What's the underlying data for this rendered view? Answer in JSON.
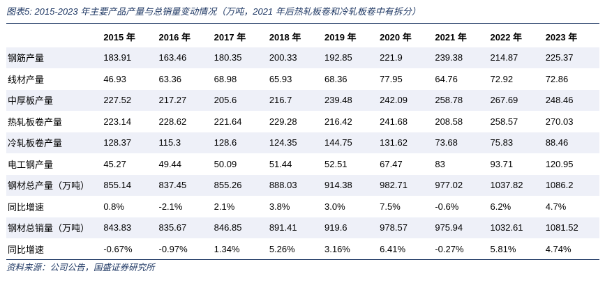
{
  "title": "图表5: 2015-2023 年主要产品产量与总销量变动情况（万吨，2021 年后热轧板卷和冷轧板卷中有拆分）",
  "source": "资料来源：公司公告，国盛证券研究所",
  "table": {
    "header": [
      "",
      "2015 年",
      "2016 年",
      "2017 年",
      "2018 年",
      "2019 年",
      "2020 年",
      "2021 年",
      "2022 年",
      "2023 年"
    ],
    "rows": [
      {
        "label": "钢筋产量",
        "values": [
          "183.91",
          "163.46",
          "180.35",
          "200.33",
          "192.85",
          "221.9",
          "239.38",
          "214.87",
          "225.37"
        ]
      },
      {
        "label": "线材产量",
        "values": [
          "46.93",
          "63.36",
          "68.98",
          "65.93",
          "68.36",
          "77.95",
          "64.76",
          "72.92",
          "72.86"
        ]
      },
      {
        "label": "中厚板产量",
        "values": [
          "227.52",
          "217.27",
          "205.6",
          "216.7",
          "239.48",
          "242.09",
          "258.78",
          "267.69",
          "248.46"
        ]
      },
      {
        "label": "热轧板卷产量",
        "values": [
          "223.14",
          "228.62",
          "221.64",
          "229.28",
          "216.42",
          "241.68",
          "208.58",
          "258.57",
          "270.03"
        ]
      },
      {
        "label": "冷轧板卷产量",
        "values": [
          "128.37",
          "115.3",
          "128.6",
          "124.35",
          "144.75",
          "131.62",
          "73.68",
          "75.83",
          "88.46"
        ]
      },
      {
        "label": "电工钢产量",
        "values": [
          "45.27",
          "49.44",
          "50.09",
          "51.44",
          "52.51",
          "67.47",
          "83",
          "93.71",
          "120.95"
        ]
      },
      {
        "label": "钢材总产量（万吨）",
        "values": [
          "855.14",
          "837.45",
          "855.26",
          "888.03",
          "914.38",
          "982.71",
          "977.02",
          "1037.82",
          "1086.2"
        ]
      },
      {
        "label": "同比增速",
        "values": [
          "0.8%",
          "-2.1%",
          "2.1%",
          "3.8%",
          "3.0%",
          "7.5%",
          "-0.6%",
          "6.2%",
          "4.7%"
        ]
      },
      {
        "label": "钢材总销量（万吨）",
        "values": [
          "843.83",
          "835.67",
          "846.85",
          "891.41",
          "919.6",
          "978.57",
          "975.94",
          "1032.61",
          "1081.52"
        ]
      },
      {
        "label": "同比增速",
        "values": [
          "-0.67%",
          "-0.97%",
          "1.34%",
          "5.26%",
          "3.16%",
          "6.41%",
          "-0.27%",
          "5.81%",
          "4.74%"
        ]
      }
    ]
  }
}
